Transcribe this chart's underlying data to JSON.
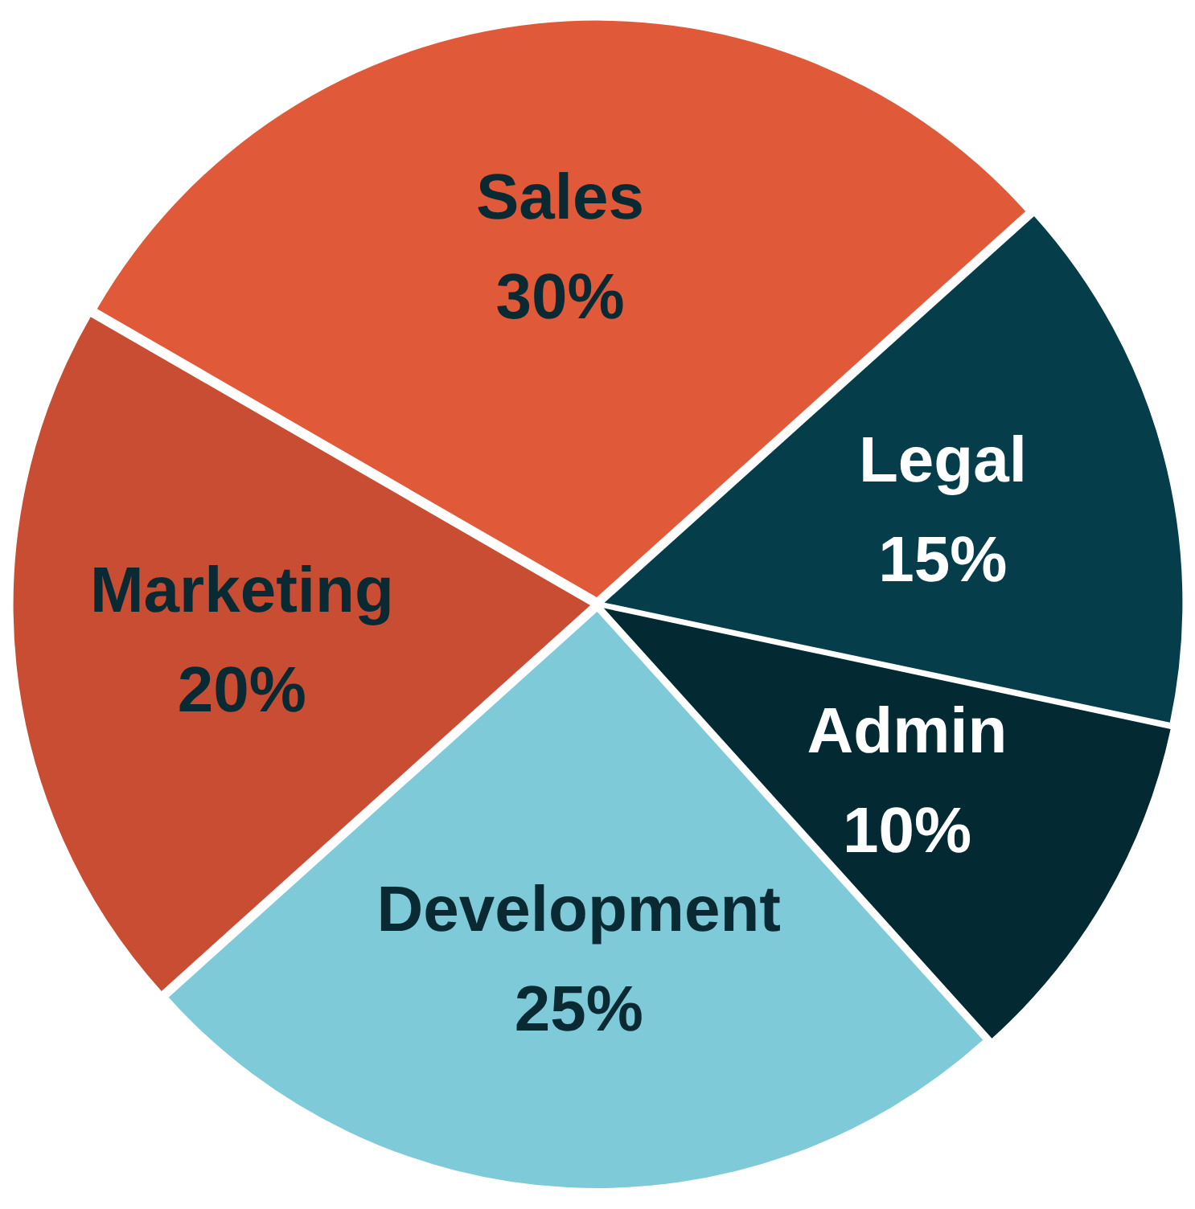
{
  "chart_data": {
    "type": "pie",
    "categories": [
      "Sales",
      "Legal",
      "Admin",
      "Development",
      "Marketing"
    ],
    "values": [
      30,
      15,
      10,
      25,
      20
    ],
    "value_labels": [
      "30%",
      "15%",
      "10%",
      "25%",
      "20%"
    ],
    "colors": [
      "#e05a3a",
      "#053e4a",
      "#032a33",
      "#7fcad9",
      "#c94d32"
    ],
    "legend": false
  }
}
